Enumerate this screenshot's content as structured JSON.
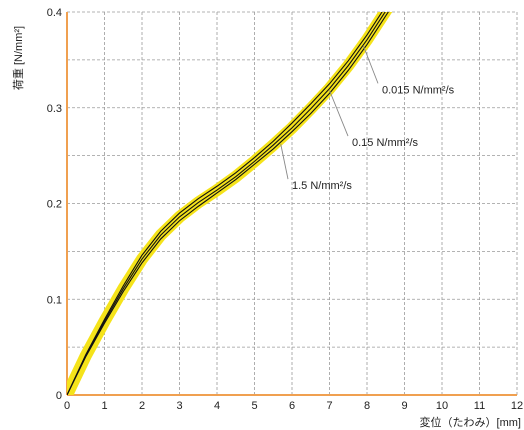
{
  "chart_data": {
    "type": "line",
    "xlabel": "変位（たわみ）[mm]",
    "ylabel": "荷重 [N/mm²]",
    "xlim": [
      0,
      12
    ],
    "ylim": [
      0,
      0.4
    ],
    "xticks": [
      "0",
      "1",
      "2",
      "3",
      "4",
      "5",
      "6",
      "7",
      "8",
      "9",
      "10",
      "11",
      "12"
    ],
    "yticks": [
      "0",
      "0.1",
      "0.2",
      "0.3",
      "0.4"
    ],
    "grid": true,
    "band_color": "#f5e31a",
    "axis_color": "#f0a050",
    "line_color": "#111111",
    "series": [
      {
        "x": [
          0,
          0.5,
          1,
          1.5,
          2,
          2.5,
          3,
          3.5,
          4,
          4.5,
          5,
          5.5,
          6,
          6.5,
          7,
          7.5,
          8,
          8.5,
          9
        ],
        "y": [
          0,
          0.04,
          0.075,
          0.108,
          0.138,
          0.163,
          0.182,
          0.197,
          0.211,
          0.225,
          0.241,
          0.257,
          0.275,
          0.294,
          0.315,
          0.339,
          0.366,
          0.396,
          0.426
        ]
      },
      {
        "x": [
          0,
          0.5,
          1,
          1.5,
          2,
          2.5,
          3,
          3.5,
          4,
          4.5,
          5,
          5.5,
          6,
          6.5,
          7,
          7.5,
          8,
          8.5,
          9
        ],
        "y": [
          0,
          0.041,
          0.077,
          0.111,
          0.142,
          0.167,
          0.186,
          0.201,
          0.214,
          0.228,
          0.244,
          0.261,
          0.279,
          0.299,
          0.32,
          0.344,
          0.371,
          0.401,
          0.431
        ]
      },
      {
        "x": [
          0,
          0.5,
          1,
          1.5,
          2,
          2.5,
          3,
          3.5,
          4,
          4.5,
          5,
          5.5,
          6,
          6.5,
          7,
          7.5,
          8,
          8.5,
          9
        ],
        "y": [
          0,
          0.042,
          0.079,
          0.114,
          0.146,
          0.171,
          0.19,
          0.205,
          0.218,
          0.232,
          0.248,
          0.265,
          0.284,
          0.304,
          0.325,
          0.349,
          0.376,
          0.406,
          0.436
        ]
      }
    ],
    "annotations": [
      {
        "text": "0.015 N/mm²/s",
        "x": 7.9,
        "y": 0.365,
        "tx": 8.4,
        "ty": 0.315
      },
      {
        "text": "0.15 N/mm²/s",
        "x": 7.0,
        "y": 0.318,
        "tx": 7.6,
        "ty": 0.26
      },
      {
        "text": "1.5 N/mm²/s",
        "x": 5.7,
        "y": 0.262,
        "tx": 6.0,
        "ty": 0.215
      }
    ]
  }
}
